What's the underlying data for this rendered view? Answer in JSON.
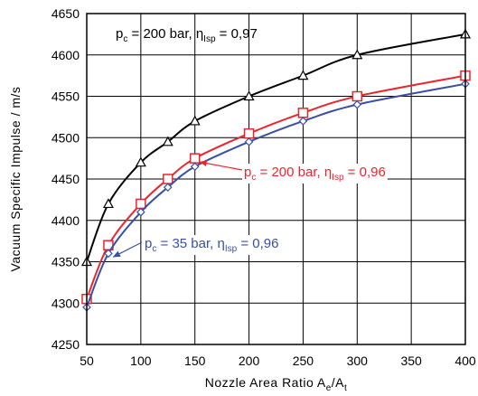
{
  "chart_data": {
    "type": "line",
    "xlabel": {
      "base": "Nozzle Area Ratio A",
      "sub1": "e",
      "mid": "/A",
      "sub2": "t"
    },
    "ylabel": "Vacuum Specific Impulse / m/s",
    "xlim": [
      50,
      400
    ],
    "ylim": [
      4250,
      4650
    ],
    "xticks": [
      50,
      100,
      150,
      200,
      250,
      300,
      350,
      400
    ],
    "yticks": [
      4250,
      4300,
      4350,
      4400,
      4450,
      4500,
      4550,
      4600,
      4650
    ],
    "grid": true,
    "series": [
      {
        "name": "pc = 200 bar, ηIsp = 0,97",
        "color": "#000000",
        "marker": "triangle",
        "x": [
          50,
          70,
          100,
          125,
          150,
          200,
          250,
          300,
          400
        ],
        "y": [
          4350,
          4420,
          4470,
          4495,
          4520,
          4550,
          4575,
          4600,
          4625
        ]
      },
      {
        "name": "pc = 200 bar, ηIsp = 0,96",
        "color": "#e8262b",
        "marker": "square",
        "x": [
          50,
          70,
          100,
          125,
          150,
          200,
          250,
          300,
          400
        ],
        "y": [
          4305,
          4370,
          4420,
          4450,
          4475,
          4505,
          4530,
          4550,
          4575
        ]
      },
      {
        "name": "pc = 35 bar, ηIsp = 0,96",
        "color": "#3a4fa3",
        "marker": "diamond",
        "x": [
          50,
          70,
          100,
          125,
          150,
          200,
          250,
          300,
          400
        ],
        "y": [
          4295,
          4360,
          4410,
          4440,
          4465,
          4495,
          4520,
          4540,
          4565
        ]
      }
    ],
    "annotations": [
      {
        "series": 0,
        "p": "p",
        "psub": "c",
        "mid": " = 200 bar, ",
        "eta": "η",
        "etasub": "Isp",
        "tail": " = 0,97",
        "color": "#000000"
      },
      {
        "series": 1,
        "p": "p",
        "psub": "c",
        "mid": " = 200 bar, ",
        "eta": "η",
        "etasub": "Isp",
        "tail": " = 0,96",
        "color": "#e8262b"
      },
      {
        "series": 2,
        "p": "p",
        "psub": "c",
        "mid": " = 35 bar, ",
        "eta": "η",
        "etasub": "Isp",
        "tail": " = 0,96",
        "color": "#3a4fa3"
      }
    ]
  }
}
